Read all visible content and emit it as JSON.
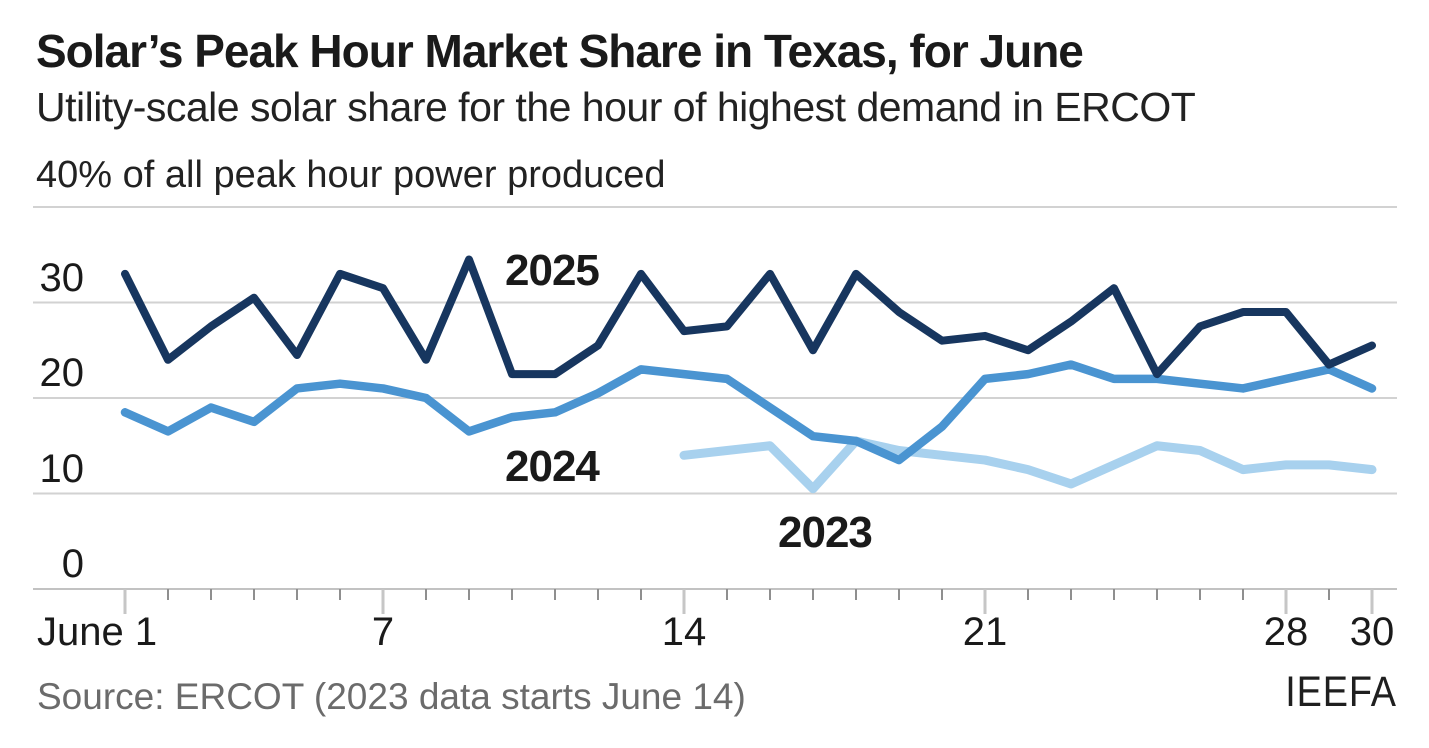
{
  "header": {
    "title": "Solar’s Peak Hour Market Share in Texas, for June",
    "subtitle": "Utility-scale solar share for the hour of highest demand in ERCOT"
  },
  "footer": {
    "source": "Source: ERCOT (2023 data starts June 14)",
    "logo": "IEEFA"
  },
  "colors": {
    "series_2025": "#17365f",
    "series_2024": "#4a94d1",
    "series_2023": "#a8d1ee",
    "grid": "#d2d2d2",
    "axis": "#c2c2c2",
    "tick_major": "#c6c6c6",
    "tick_minor": "#8f8f8f",
    "text": "#1a1a1a",
    "source_text": "#6b6b6b"
  },
  "chart_data": {
    "type": "line",
    "title": "Solar’s Peak Hour Market Share in Texas, for June",
    "subtitle": "Utility-scale solar share for the hour of highest demand in ERCOT",
    "y_axis_top_label": "40% of all peak hour power produced",
    "note": "2023 data starts June 14",
    "x_unit": "day of June",
    "x_range": [
      1,
      30
    ],
    "ylim": [
      0,
      40
    ],
    "grid": "horizontal",
    "legend_position": "inline-labels",
    "ytick_gridlines": [
      0,
      10,
      20,
      30,
      40
    ],
    "ytick_labels": [
      {
        "value": 30,
        "label": "30"
      },
      {
        "value": 20,
        "label": "20"
      },
      {
        "value": 10,
        "label": "10"
      },
      {
        "value": 0,
        "label": "0"
      }
    ],
    "x_major_ticks": [
      1,
      7,
      14,
      21,
      28,
      30
    ],
    "x_labels": [
      {
        "day": 1,
        "label": "June 1",
        "align": "left"
      },
      {
        "day": 7,
        "label": "7"
      },
      {
        "day": 14,
        "label": "14"
      },
      {
        "day": 21,
        "label": "21"
      },
      {
        "day": 28,
        "label": "28"
      },
      {
        "day": 30,
        "label": "30"
      }
    ],
    "series": [
      {
        "name": "2025",
        "color": "#17365f",
        "start_day": 1,
        "values": [
          33,
          24,
          27.5,
          30.5,
          24.5,
          33,
          31.5,
          24,
          34.5,
          22.5,
          22.5,
          25.5,
          33,
          27,
          27.5,
          33,
          25,
          33,
          29,
          26,
          26.5,
          25,
          28,
          31.5,
          22.5,
          27.5,
          29,
          29,
          23.5,
          25.5
        ]
      },
      {
        "name": "2024",
        "color": "#4a94d1",
        "start_day": 1,
        "values": [
          18.5,
          16.5,
          19,
          17.5,
          21,
          21.5,
          21,
          20,
          16.5,
          18,
          18.5,
          20.5,
          23,
          22.5,
          22,
          19,
          16,
          15.5,
          13.5,
          17,
          22,
          22.5,
          23.5,
          22,
          22,
          21.5,
          21,
          22,
          23,
          21
        ]
      },
      {
        "name": "2023",
        "color": "#a8d1ee",
        "start_day": 14,
        "values": [
          14,
          14.5,
          15,
          10.5,
          15.5,
          14.5,
          14,
          13.5,
          12.5,
          11,
          13,
          15,
          14.5,
          12.5,
          13,
          13,
          12.5
        ]
      }
    ]
  }
}
